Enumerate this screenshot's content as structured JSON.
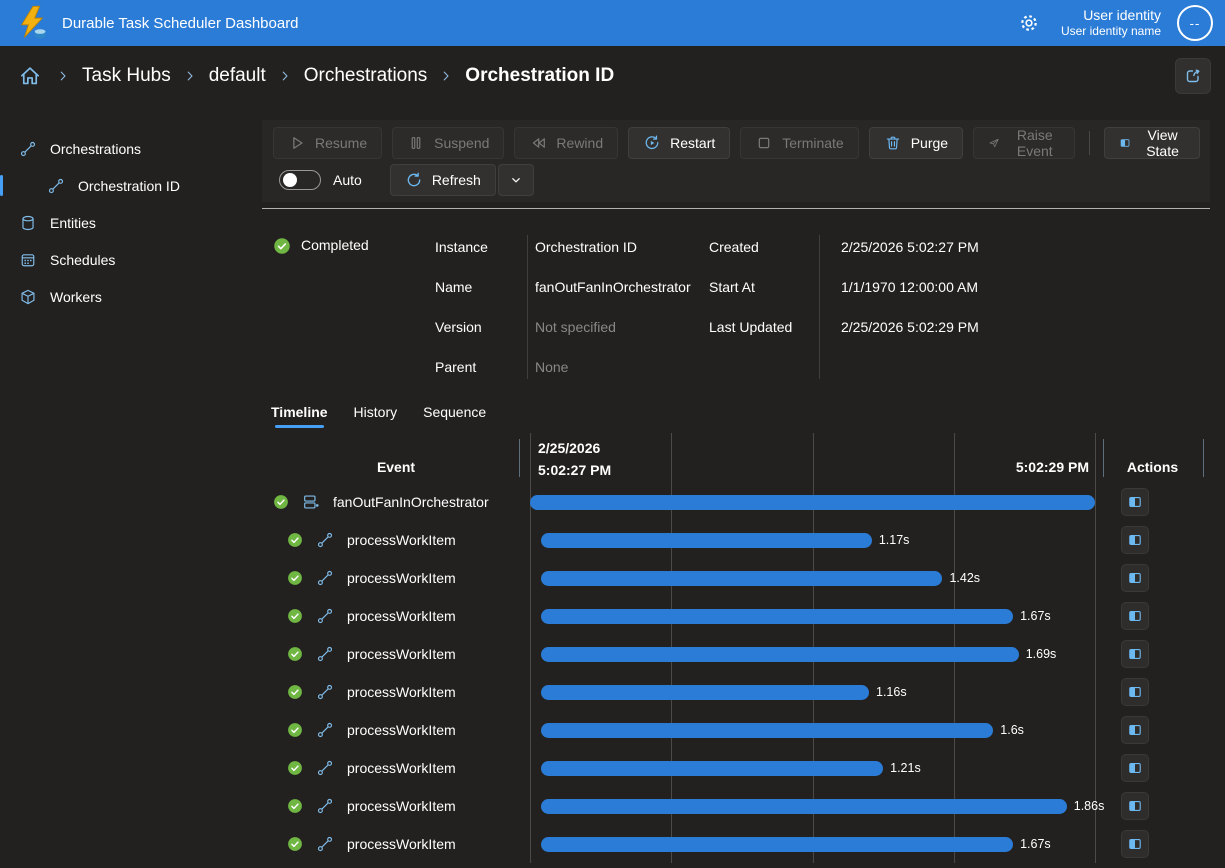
{
  "app": {
    "title": "Durable Task Scheduler Dashboard"
  },
  "header": {
    "user_identity": "User identity",
    "user_identity_name": "User identity name",
    "avatar_label": "--"
  },
  "breadcrumb": {
    "items": [
      "Task Hubs",
      "default",
      "Orchestrations"
    ],
    "current": "Orchestration ID"
  },
  "sidebar": {
    "items": [
      {
        "label": "Orchestrations",
        "icon": "link-icon"
      },
      {
        "label": "Orchestration ID",
        "icon": "link-icon",
        "child": true,
        "selected": true
      },
      {
        "label": "Entities",
        "icon": "database-icon"
      },
      {
        "label": "Schedules",
        "icon": "calendar-icon"
      },
      {
        "label": "Workers",
        "icon": "cube-icon"
      }
    ]
  },
  "toolbar": {
    "buttons": [
      {
        "label": "Resume",
        "icon": "play-icon",
        "enabled": false
      },
      {
        "label": "Suspend",
        "icon": "pause-icon",
        "enabled": false
      },
      {
        "label": "Rewind",
        "icon": "rewind-icon",
        "enabled": false
      },
      {
        "label": "Restart",
        "icon": "restart-icon",
        "enabled": true
      },
      {
        "label": "Terminate",
        "icon": "stop-icon",
        "enabled": false
      },
      {
        "label": "Purge",
        "icon": "trash-icon",
        "enabled": true
      },
      {
        "label": "Raise Event",
        "icon": "send-icon",
        "enabled": false
      },
      {
        "label": "View State",
        "icon": "view-state-icon",
        "enabled": true
      }
    ],
    "auto_label": "Auto",
    "refresh_label": "Refresh"
  },
  "details": {
    "status": "Completed",
    "fields_left": [
      {
        "label": "Instance",
        "value": "Orchestration ID",
        "muted": false
      },
      {
        "label": "Name",
        "value": "fanOutFanInOrchestrator",
        "muted": false
      },
      {
        "label": "Version",
        "value": "Not specified",
        "muted": true
      },
      {
        "label": "Parent",
        "value": "None",
        "muted": true
      }
    ],
    "fields_right": [
      {
        "label": "Created",
        "value": "2/25/2026 5:02:27 PM"
      },
      {
        "label": "Start At",
        "value": "1/1/1970 12:00:00 AM"
      },
      {
        "label": "Last Updated",
        "value": "2/25/2026 5:02:29 PM"
      }
    ]
  },
  "tabs": {
    "items": [
      "Timeline",
      "History",
      "Sequence"
    ],
    "active": "Timeline"
  },
  "timeline": {
    "event_header": "Event",
    "actions_header": "Actions",
    "axis": {
      "start_date": "2/25/2026",
      "start_time": "5:02:27 PM",
      "end_time": "5:02:29 PM",
      "total_seconds": 2.0
    },
    "rows": [
      {
        "name": "fanOutFanInOrchestrator",
        "icon": "orchestration-icon",
        "status": "completed",
        "start_s": 0,
        "duration_s": 2.0,
        "duration_label": ""
      },
      {
        "name": "processWorkItem",
        "icon": "activity-icon",
        "status": "completed",
        "start_s": 0.04,
        "duration_s": 1.17,
        "duration_label": "1.17s"
      },
      {
        "name": "processWorkItem",
        "icon": "activity-icon",
        "status": "completed",
        "start_s": 0.04,
        "duration_s": 1.42,
        "duration_label": "1.42s"
      },
      {
        "name": "processWorkItem",
        "icon": "activity-icon",
        "status": "completed",
        "start_s": 0.04,
        "duration_s": 1.67,
        "duration_label": "1.67s"
      },
      {
        "name": "processWorkItem",
        "icon": "activity-icon",
        "status": "completed",
        "start_s": 0.04,
        "duration_s": 1.69,
        "duration_label": "1.69s"
      },
      {
        "name": "processWorkItem",
        "icon": "activity-icon",
        "status": "completed",
        "start_s": 0.04,
        "duration_s": 1.16,
        "duration_label": "1.16s"
      },
      {
        "name": "processWorkItem",
        "icon": "activity-icon",
        "status": "completed",
        "start_s": 0.04,
        "duration_s": 1.6,
        "duration_label": "1.6s"
      },
      {
        "name": "processWorkItem",
        "icon": "activity-icon",
        "status": "completed",
        "start_s": 0.04,
        "duration_s": 1.21,
        "duration_label": "1.21s"
      },
      {
        "name": "processWorkItem",
        "icon": "activity-icon",
        "status": "completed",
        "start_s": 0.04,
        "duration_s": 1.86,
        "duration_label": "1.86s"
      },
      {
        "name": "processWorkItem",
        "icon": "activity-icon",
        "status": "completed",
        "start_s": 0.04,
        "duration_s": 1.67,
        "duration_label": "1.67s"
      }
    ]
  }
}
